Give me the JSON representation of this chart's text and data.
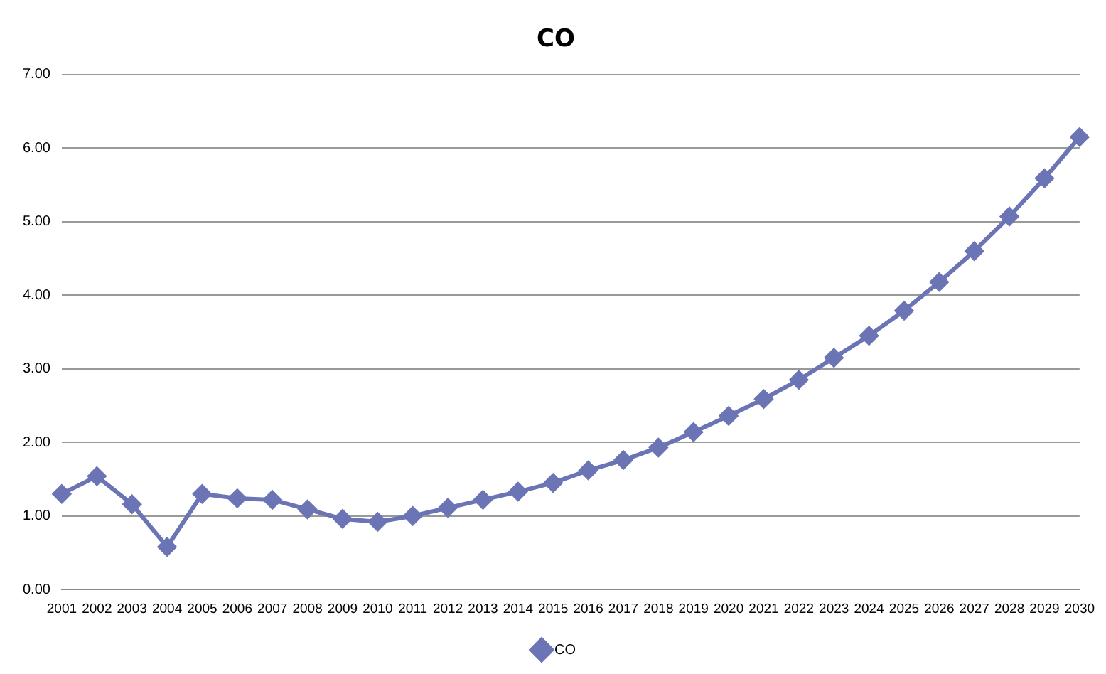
{
  "chart_data": {
    "type": "line",
    "title": "CO",
    "categories": [
      "2001",
      "2002",
      "2003",
      "2004",
      "2005",
      "2006",
      "2007",
      "2008",
      "2009",
      "2010",
      "2011",
      "2012",
      "2013",
      "2014",
      "2015",
      "2016",
      "2017",
      "2018",
      "2019",
      "2020",
      "2021",
      "2022",
      "2023",
      "2024",
      "2025",
      "2026",
      "2027",
      "2028",
      "2029",
      "2030"
    ],
    "series": [
      {
        "name": "CO",
        "color": "#6b74b4",
        "values": [
          1.3,
          1.54,
          1.16,
          0.58,
          1.3,
          1.24,
          1.22,
          1.09,
          0.96,
          0.92,
          1.0,
          1.11,
          1.22,
          1.33,
          1.45,
          1.62,
          1.76,
          1.93,
          2.14,
          2.36,
          2.59,
          2.85,
          3.15,
          3.45,
          3.79,
          4.18,
          4.6,
          5.07,
          5.59,
          6.15
        ]
      }
    ],
    "ylim": [
      0,
      7
    ],
    "yticks": [
      {
        "value": 0,
        "label": "0.00"
      },
      {
        "value": 1,
        "label": "1.00"
      },
      {
        "value": 2,
        "label": "2.00"
      },
      {
        "value": 3,
        "label": "3.00"
      },
      {
        "value": 4,
        "label": "4.00"
      },
      {
        "value": 5,
        "label": "5.00"
      },
      {
        "value": 6,
        "label": "6.00"
      },
      {
        "value": 7,
        "label": "7.00"
      }
    ],
    "grid": "y",
    "legend": "bottom",
    "marker": "diamond",
    "line_style": "solid"
  }
}
